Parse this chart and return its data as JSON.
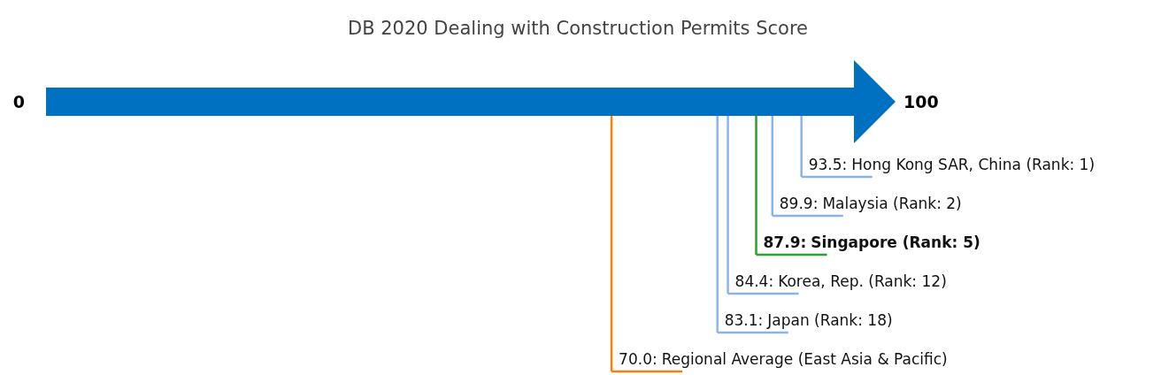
{
  "chart_data": {
    "type": "other",
    "title": "DB 2020 Dealing with Construction Permits Score",
    "categories": [
      "Hong Kong SAR, China (Rank: 1)",
      "Malaysia (Rank: 2)",
      "Singapore (Rank: 5)",
      "Korea, Rep. (Rank: 12)",
      "Japan (Rank: 18)",
      "Regional Average (East Asia & Pacific)"
    ],
    "values": [
      93.5,
      89.9,
      87.9,
      84.4,
      83.1,
      70.0
    ],
    "value_labels": [
      "93.5:",
      "89.9:",
      "87.9:",
      "84.4:",
      "83.1:",
      "70.0:"
    ],
    "colors": [
      "#8ab4f0",
      "#8ab4f0",
      "#2ca02c",
      "#8ab4f0",
      "#8ab4f0",
      "#ff7f0e"
    ],
    "annotations": [
      "0",
      "100"
    ]
  }
}
